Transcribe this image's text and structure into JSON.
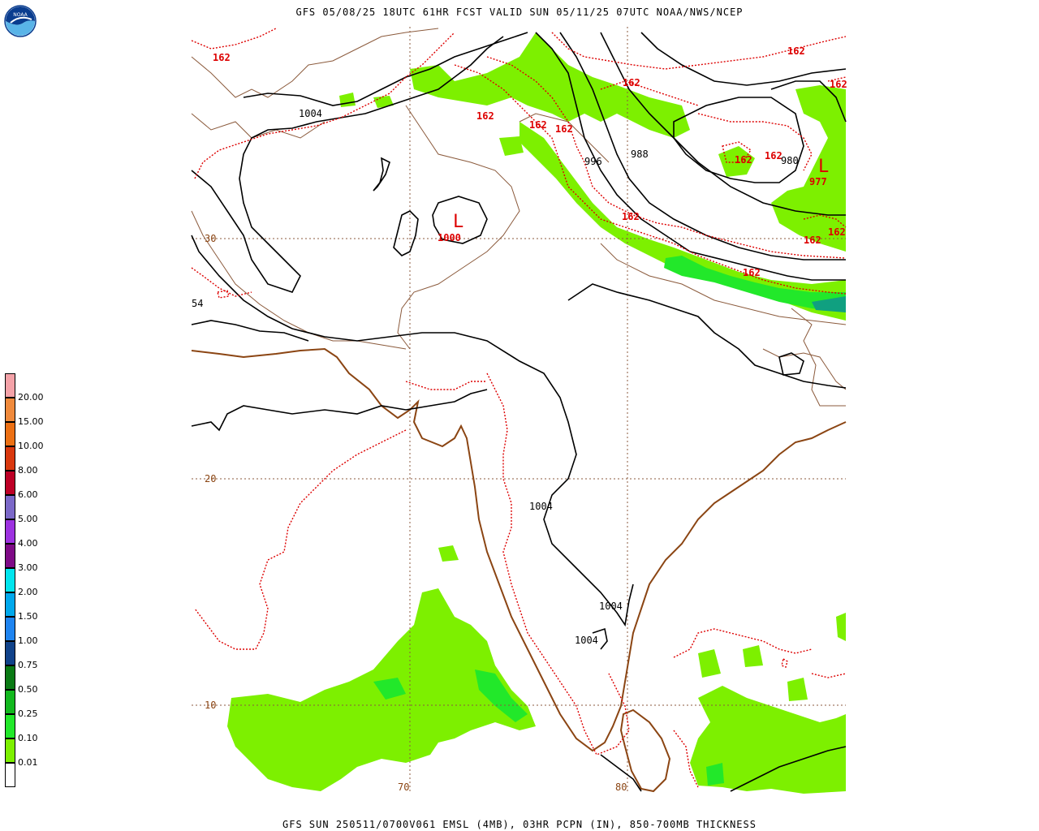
{
  "top_title": "GFS 05/08/25 18UTC 61HR FCST VALID SUN 05/11/25 07UTC NOAA/NWS/NCEP",
  "bottom_title": "GFS SUN 250511/0700V061 EMSL (4MB), 03HR PCPN (IN), 850-700MB THICKNESS",
  "logo": {
    "icon": "noaa-logo",
    "text": "NOAA"
  },
  "legend": {
    "colors": [
      "#f4a2a8",
      "#f08a3c",
      "#ec7014",
      "#d9380e",
      "#bd0026",
      "#7b68c8",
      "#9d32e0",
      "#7e0a86",
      "#00e5ee",
      "#00a8ec",
      "#1e84f0",
      "#10428a",
      "#0a7a14",
      "#12b81e",
      "#22e82a",
      "#7df000",
      "#ffffff"
    ],
    "labels": [
      "20.00",
      "15.00",
      "10.00",
      "8.00",
      "6.00",
      "5.00",
      "4.00",
      "3.00",
      "2.00",
      "1.50",
      "1.00",
      "0.75",
      "0.50",
      "0.25",
      "0.10",
      "0.01"
    ]
  },
  "map": {
    "lat_labels": [
      "30",
      "20",
      "10"
    ],
    "lon_labels": [
      "70",
      "80"
    ],
    "pressure_labels": [
      "1004",
      "1004",
      "1004",
      "1004",
      "996",
      "988",
      "980",
      "54"
    ],
    "thickness_labels": [
      "162",
      "162",
      "162",
      "162",
      "162",
      "162",
      "162",
      "162",
      "162",
      "162",
      "162",
      "162",
      "162"
    ],
    "lows": [
      {
        "symbol": "L",
        "value": "1000"
      },
      {
        "symbol": "L",
        "value": "977"
      }
    ],
    "colors": {
      "isobar": "#000000",
      "thickness": "#dd0000",
      "border": "#8b5a3c",
      "coast": "#8b4513",
      "grid": "#8b5a3c",
      "precip_light": "#7df000",
      "precip_mid": "#22e82a",
      "precip_heavy": "#0a7a14",
      "precip_teal": "#10a080"
    }
  }
}
